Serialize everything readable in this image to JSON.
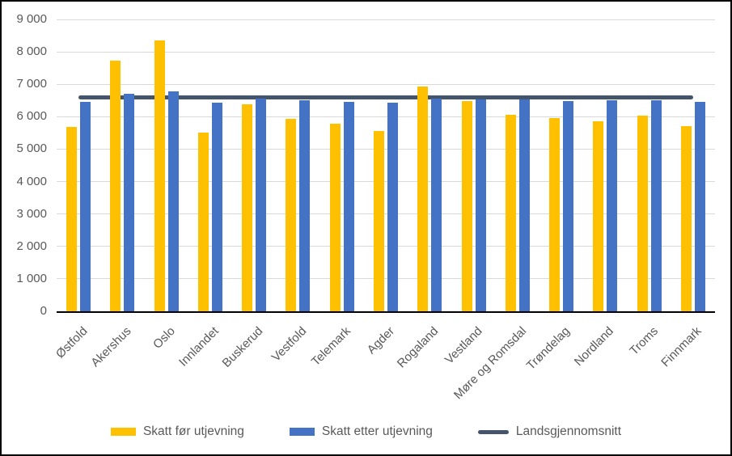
{
  "chart_data": {
    "type": "bar",
    "title": "",
    "xlabel": "",
    "ylabel": "",
    "categories": [
      "Østfold",
      "Akershus",
      "Oslo",
      "Innlandet",
      "Buskerud",
      "Vestfold",
      "Telemark",
      "Agder",
      "Rogaland",
      "Vestland",
      "Møre og Romsdal",
      "Trøndelag",
      "Nordland",
      "Troms",
      "Finnmark"
    ],
    "series": [
      {
        "name": "Skatt før utjevning",
        "color": "#FFC000",
        "values": [
          5680,
          7740,
          8350,
          5500,
          6380,
          5930,
          5790,
          5570,
          6940,
          6490,
          6070,
          5970,
          5860,
          6030,
          5700
        ]
      },
      {
        "name": "Skatt etter utjevning",
        "color": "#4472C4",
        "values": [
          6450,
          6700,
          6780,
          6430,
          6560,
          6500,
          6470,
          6440,
          6550,
          6540,
          6530,
          6490,
          6500,
          6500,
          6460
        ]
      }
    ],
    "reference_line": {
      "name": "Landsgjennomsnitt",
      "value": 6600,
      "color": "#44546A"
    },
    "ylim": [
      0,
      9000
    ],
    "ytick_interval": 1000,
    "ytick_labels": [
      "0",
      "1 000",
      "2 000",
      "3 000",
      "4 000",
      "5 000",
      "6 000",
      "7 000",
      "8 000",
      "9 000"
    ],
    "grid": true,
    "legend_position": "bottom"
  },
  "colors": {
    "grid": "#d9d9d9",
    "axis_text": "#595959",
    "axis_line": "#000000",
    "background": "#ffffff",
    "border": "#000000"
  }
}
